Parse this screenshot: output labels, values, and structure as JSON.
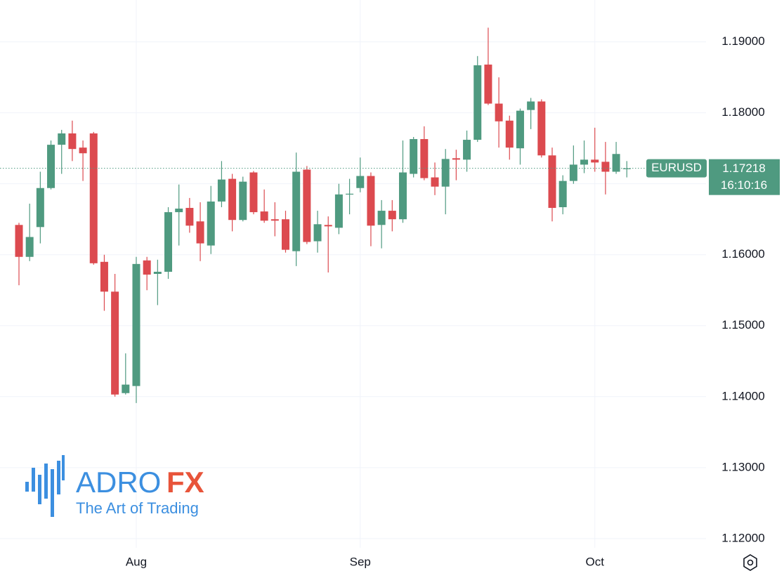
{
  "chart_data": {
    "type": "candlestick",
    "symbol": "EURUSD",
    "last_price": 1.17218,
    "countdown": "16:10:16",
    "categories": [
      null,
      null,
      null,
      null,
      null,
      null,
      null,
      null,
      null,
      null,
      null,
      "Aug",
      null,
      null,
      null,
      null,
      null,
      null,
      null,
      null,
      null,
      null,
      null,
      null,
      null,
      null,
      null,
      null,
      null,
      null,
      null,
      null,
      "Sep",
      null,
      null,
      null,
      null,
      null,
      null,
      null,
      null,
      null,
      null,
      null,
      null,
      null,
      null,
      null,
      null,
      null,
      null,
      null,
      null,
      null,
      "Oct",
      null,
      null,
      null
    ],
    "open": [
      1.1642,
      1.1597,
      1.1639,
      1.1694,
      1.1755,
      1.1771,
      1.1751,
      1.1771,
      1.159,
      1.1548,
      1.1405,
      1.1415,
      1.1592,
      1.1573,
      1.1576,
      1.166,
      1.1666,
      1.1647,
      1.1613,
      1.1675,
      1.1707,
      1.1649,
      1.1716,
      1.1661,
      1.165,
      1.165,
      1.1605,
      1.172,
      1.1619,
      1.1642,
      1.1638,
      1.1685,
      1.1694,
      1.1711,
      1.1642,
      1.1662,
      1.165,
      1.1714,
      1.1763,
      1.1709,
      1.1696,
      1.1736,
      1.1734,
      1.1762,
      1.1868,
      1.1813,
      1.1789,
      1.175,
      1.1804,
      1.1816,
      1.174,
      1.1667,
      1.1704,
      1.1727,
      1.1734,
      1.1731,
      1.1717,
      1.1721
    ],
    "high": [
      1.1645,
      1.1672,
      1.1717,
      1.1761,
      1.1776,
      1.1789,
      1.1761,
      1.1773,
      1.16,
      1.1573,
      1.1461,
      1.1597,
      1.1597,
      1.1593,
      1.1667,
      1.1699,
      1.168,
      1.1674,
      1.1697,
      1.1732,
      1.1714,
      1.171,
      1.1718,
      1.1692,
      1.1674,
      1.1662,
      1.1744,
      1.1725,
      1.1662,
      1.1654,
      1.17,
      1.1707,
      1.1737,
      1.1716,
      1.1677,
      1.1677,
      1.1761,
      1.1766,
      1.1781,
      1.173,
      1.1749,
      1.1748,
      1.1775,
      1.188,
      1.192,
      1.185,
      1.1796,
      1.1806,
      1.1821,
      1.1819,
      1.1751,
      1.1712,
      1.1754,
      1.1761,
      1.1779,
      1.1759,
      1.1759,
      1.1732
    ],
    "low": [
      1.1557,
      1.1591,
      1.1616,
      1.1692,
      1.1714,
      1.1732,
      1.1704,
      1.1586,
      1.1521,
      1.14,
      1.1403,
      1.1391,
      1.155,
      1.1529,
      1.1566,
      1.1613,
      1.1631,
      1.1591,
      1.1601,
      1.1667,
      1.1633,
      1.1647,
      1.1657,
      1.1645,
      1.1626,
      1.1603,
      1.1584,
      1.1615,
      1.1603,
      1.1575,
      1.1629,
      1.1657,
      1.1688,
      1.1612,
      1.1609,
      1.1633,
      1.1645,
      1.1709,
      1.1705,
      1.1684,
      1.1657,
      1.1705,
      1.1717,
      1.1759,
      1.1811,
      1.1751,
      1.1734,
      1.1727,
      1.1777,
      1.1737,
      1.1647,
      1.1657,
      1.17,
      1.1715,
      1.1717,
      1.1685,
      1.1714,
      1.1709
    ],
    "close": [
      1.1597,
      1.1625,
      1.1694,
      1.1755,
      1.1771,
      1.1749,
      1.1743,
      1.1588,
      1.1548,
      1.1403,
      1.1417,
      1.1587,
      1.1572,
      1.1576,
      1.166,
      1.1665,
      1.1641,
      1.1616,
      1.1675,
      1.1706,
      1.1649,
      1.1703,
      1.166,
      1.1648,
      1.1648,
      1.1607,
      1.1717,
      1.1618,
      1.1643,
      1.164,
      1.1685,
      1.1686,
      1.1711,
      1.1641,
      1.1662,
      1.165,
      1.1716,
      1.1763,
      1.1708,
      1.1696,
      1.1735,
      1.1734,
      1.1762,
      1.1867,
      1.1813,
      1.1788,
      1.1751,
      1.1803,
      1.1816,
      1.174,
      1.1666,
      1.1704,
      1.1727,
      1.1734,
      1.173,
      1.1717,
      1.1742,
      1.17218
    ],
    "up_color": "#4f9a80",
    "down_color": "#dc4a4f",
    "ylim": [
      1.1187,
      1.1959
    ],
    "yticks": [
      {
        "value": 1.12,
        "label": "1.12000"
      },
      {
        "value": 1.13,
        "label": "1.13000"
      },
      {
        "value": 1.14,
        "label": "1.14000"
      },
      {
        "value": 1.15,
        "label": "1.15000"
      },
      {
        "value": 1.16,
        "label": "1.16000"
      },
      {
        "value": 1.17,
        "label": "1.17000"
      },
      {
        "value": 1.18,
        "label": "1.18000"
      },
      {
        "value": 1.19,
        "label": "1.19000"
      }
    ],
    "grid": true
  },
  "logo": {
    "brand": "ADRO",
    "brand_accent": "FX",
    "tagline": "The Art of Trading"
  }
}
